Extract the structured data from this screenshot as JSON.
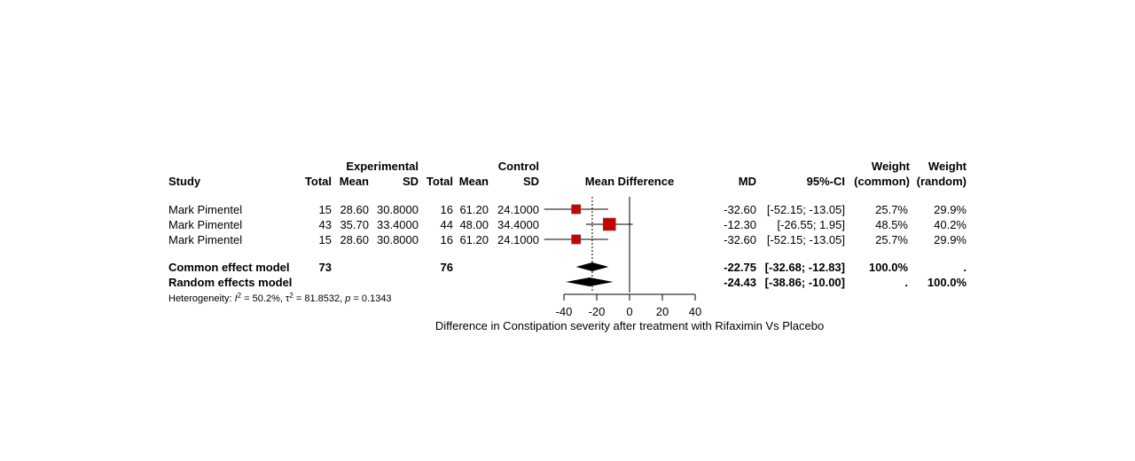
{
  "chart_data": {
    "type": "forest",
    "headers": {
      "study": "Study",
      "experimental": "Experimental",
      "control": "Control",
      "total": "Total",
      "mean": "Mean",
      "sd": "SD",
      "mean_difference": "Mean Difference",
      "md": "MD",
      "ci": "95%-CI",
      "weight": "Weight",
      "weight_common": "(common)",
      "weight_random": "(random)"
    },
    "studies": [
      {
        "study": "Mark Pimentel",
        "e_total": "15",
        "e_mean": "28.60",
        "e_sd": "30.8000",
        "c_total": "16",
        "c_mean": "61.20",
        "c_sd": "24.1000",
        "md_text": "-32.60",
        "ci_text": "[-52.15; -13.05]",
        "w_common": "25.7%",
        "w_random": "29.9%",
        "md": -32.6,
        "lower": -52.15,
        "upper": -13.05,
        "weight": 25.7
      },
      {
        "study": "Mark Pimentel",
        "e_total": "43",
        "e_mean": "35.70",
        "e_sd": "33.4000",
        "c_total": "44",
        "c_mean": "48.00",
        "c_sd": "34.4000",
        "md_text": "-12.30",
        "ci_text": "[-26.55;  1.95]",
        "w_common": "48.5%",
        "w_random": "40.2%",
        "md": -12.3,
        "lower": -26.55,
        "upper": 1.95,
        "weight": 48.5
      },
      {
        "study": "Mark Pimentel",
        "e_total": "15",
        "e_mean": "28.60",
        "e_sd": "30.8000",
        "c_total": "16",
        "c_mean": "61.20",
        "c_sd": "24.1000",
        "md_text": "-32.60",
        "ci_text": "[-52.15; -13.05]",
        "w_common": "25.7%",
        "w_random": "29.9%",
        "md": -32.6,
        "lower": -52.15,
        "upper": -13.05,
        "weight": 25.7
      }
    ],
    "common": {
      "label": "Common effect model",
      "e_total": "73",
      "c_total": "76",
      "md_text": "-22.75",
      "ci_text": "[-32.68; -12.83]",
      "w_common": "100.0%",
      "w_random": ".",
      "md": -22.75,
      "lower": -32.68,
      "upper": -12.83
    },
    "random": {
      "label": "Random effects model",
      "md_text": "-24.43",
      "ci_text": "[-38.86; -10.00]",
      "w_common": ".",
      "w_random": "100.0%",
      "md": -24.43,
      "lower": -38.86,
      "upper": -10.0
    },
    "heterogeneity": {
      "prefix": "Heterogeneity: ",
      "i2_value": "50.2%",
      "tau2_value": "81.8532",
      "p_value": "0.1343"
    },
    "x_ticks": [
      -40,
      -20,
      0,
      20,
      40
    ],
    "xlim": [
      -40,
      40
    ],
    "xlabel": "Difference in Constipation severity after treatment with Rifaximin Vs Placebo",
    "colors": {
      "square": "#cc0000",
      "diamond": "#000000",
      "line": "#000000"
    }
  }
}
